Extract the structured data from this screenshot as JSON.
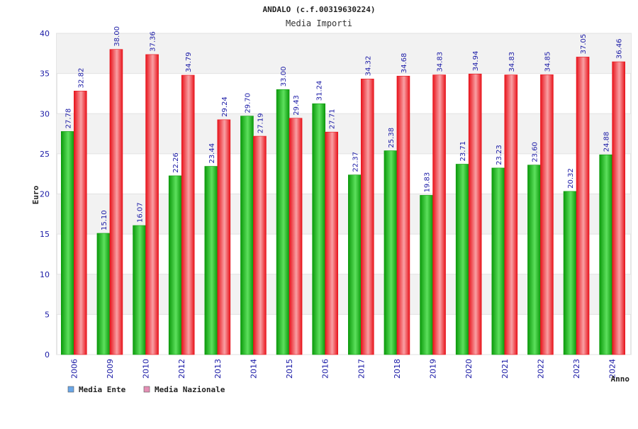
{
  "colors": {
    "ente_bar": "#0b9a0b",
    "ente_light": "#5de05d",
    "naz_bar": "#e8141c",
    "naz_light": "#f9a0a4",
    "ente_legend": "#6aa7e8",
    "naz_legend": "#e58fb5",
    "band": "#f2f2f2",
    "axis_text": "#1a1aa6"
  },
  "chart_data": {
    "type": "bar",
    "title": "ANDALO (c.f.00319630224)",
    "subtitle": "Media Importi",
    "xlabel": "Anno",
    "ylabel": "Euro",
    "ylim": [
      0,
      40
    ],
    "yticks": [
      0,
      5,
      10,
      15,
      20,
      25,
      30,
      35,
      40
    ],
    "grid": true,
    "legend_position": "bottom-left",
    "categories": [
      "2006",
      "2009",
      "2010",
      "2012",
      "2013",
      "2014",
      "2015",
      "2016",
      "2017",
      "2018",
      "2019",
      "2020",
      "2021",
      "2022",
      "2023",
      "2024"
    ],
    "series": [
      {
        "name": "Media Ente",
        "values": [
          27.78,
          15.1,
          16.07,
          22.26,
          23.44,
          29.7,
          33.0,
          31.24,
          22.37,
          25.38,
          19.83,
          23.71,
          23.23,
          23.6,
          20.32,
          24.88
        ],
        "labels": [
          "27.78",
          "15.10",
          "16.07",
          "22.26",
          "23.44",
          "29.70",
          "33.00",
          "31.24",
          "22.37",
          "25.38",
          "19.83",
          "23.71",
          "23.23",
          "23.60",
          "20.32",
          "24.88"
        ]
      },
      {
        "name": "Media Nazionale",
        "values": [
          32.82,
          38.0,
          37.36,
          34.79,
          29.24,
          27.19,
          29.43,
          27.71,
          34.32,
          34.68,
          34.83,
          34.94,
          34.83,
          34.85,
          37.05,
          36.46
        ],
        "labels": [
          "32.82",
          "38.00",
          "37.36",
          "34.79",
          "29.24",
          "27.19",
          "29.43",
          "27.71",
          "34.32",
          "34.68",
          "34.83",
          "34.94",
          "34.83",
          "34.85",
          "37.05",
          "36.46"
        ]
      }
    ]
  }
}
